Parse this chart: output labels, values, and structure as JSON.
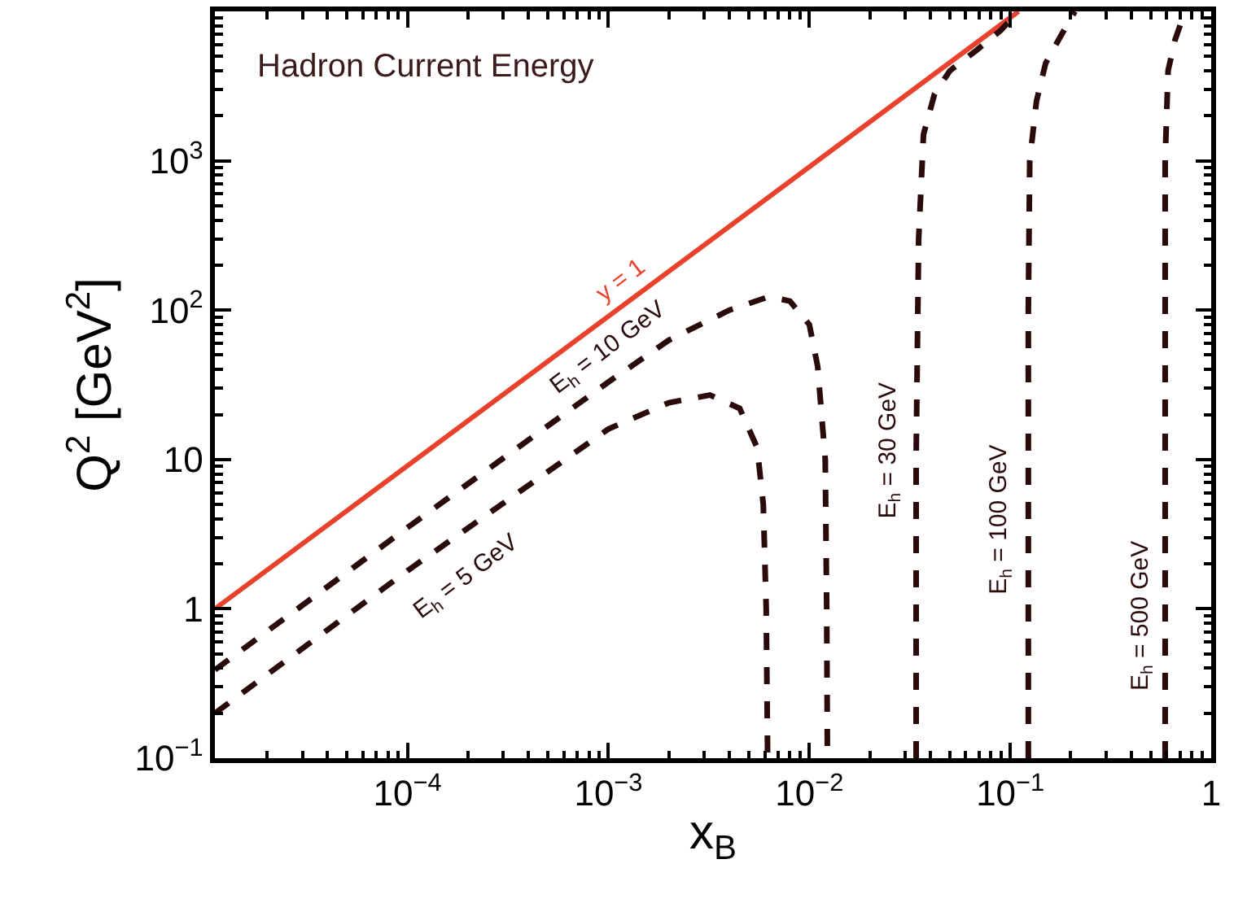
{
  "chart_data": {
    "type": "line",
    "title": "Hadron Current Energy",
    "xlabel": "x$_{B}$",
    "ylabel": "Q$^{2}$ [GeV$^{2}$]",
    "log": "xy",
    "marker": "none",
    "xlim": [
      1.1e-05,
      1
    ],
    "ylim": [
      0.1,
      10000
    ],
    "xticks": [
      {
        "value": 0.0001,
        "label": "10$^{−4}$"
      },
      {
        "value": 0.001,
        "label": "10$^{−3}$"
      },
      {
        "value": 0.01,
        "label": "10$^{−2}$"
      },
      {
        "value": 0.1,
        "label": "10$^{−1}$"
      },
      1
    ],
    "yticks": [
      {
        "value": 0.1,
        "label": "10$^{−1}$"
      },
      1,
      10,
      {
        "value": 100,
        "label": "10$^{2}$"
      },
      {
        "value": 1000,
        "label": "10$^{3}$"
      }
    ],
    "series": [
      {
        "color": "#e8412c",
        "line_style": "solid",
        "x": [
          1.1e-05,
          0.11
        ],
        "values": [
          1,
          10000
        ]
      },
      {
        "color": "#2a0a0a",
        "line_style": "dashed",
        "x": [
          1.1e-05,
          0.0001,
          0.001,
          0.002,
          0.004,
          0.0063,
          0.008,
          0.01,
          0.011,
          0.012,
          0.0122,
          0.0123
        ],
        "values": [
          0.39,
          3.5,
          33,
          63,
          100,
          123,
          115,
          80,
          42,
          10,
          1,
          0.1
        ]
      },
      {
        "color": "#2a0a0a",
        "line_style": "dashed",
        "x": [
          1.1e-05,
          0.0001,
          0.001,
          0.002,
          0.0032,
          0.0045,
          0.0055,
          0.0059,
          0.0061,
          0.0062
        ],
        "values": [
          0.2,
          1.8,
          16,
          24,
          27,
          22,
          12,
          5,
          1,
          0.1
        ]
      },
      {
        "color": "#2a0a0a",
        "line_style": "dashed",
        "x": [
          0.034,
          0.034,
          0.035,
          0.037,
          0.042,
          0.05,
          0.068,
          0.09,
          0.11
        ],
        "values": [
          0.1,
          10,
          300,
          1500,
          2800,
          4000,
          5500,
          7500,
          10000
        ]
      },
      {
        "color": "#2a0a0a",
        "line_style": "dashed",
        "x": [
          0.123,
          0.123,
          0.125,
          0.135,
          0.15,
          0.18,
          0.21
        ],
        "values": [
          0.1,
          100,
          1000,
          2500,
          4500,
          7000,
          10000
        ]
      },
      {
        "color": "#2a0a0a",
        "line_style": "dashed",
        "x": [
          0.59,
          0.59,
          0.61,
          0.66,
          0.74
        ],
        "values": [
          0.1,
          1000,
          4000,
          6400,
          10000
        ]
      }
    ],
    "annotations": [
      "y = 1",
      "E$_{h}$ = 10 GeV",
      "E$_{h}$ = 5 GeV",
      "E$_{h}$ = 30 GeV",
      "E$_{h}$ = 100 GeV",
      "E$_{h}$ = 500 GeV"
    ]
  }
}
